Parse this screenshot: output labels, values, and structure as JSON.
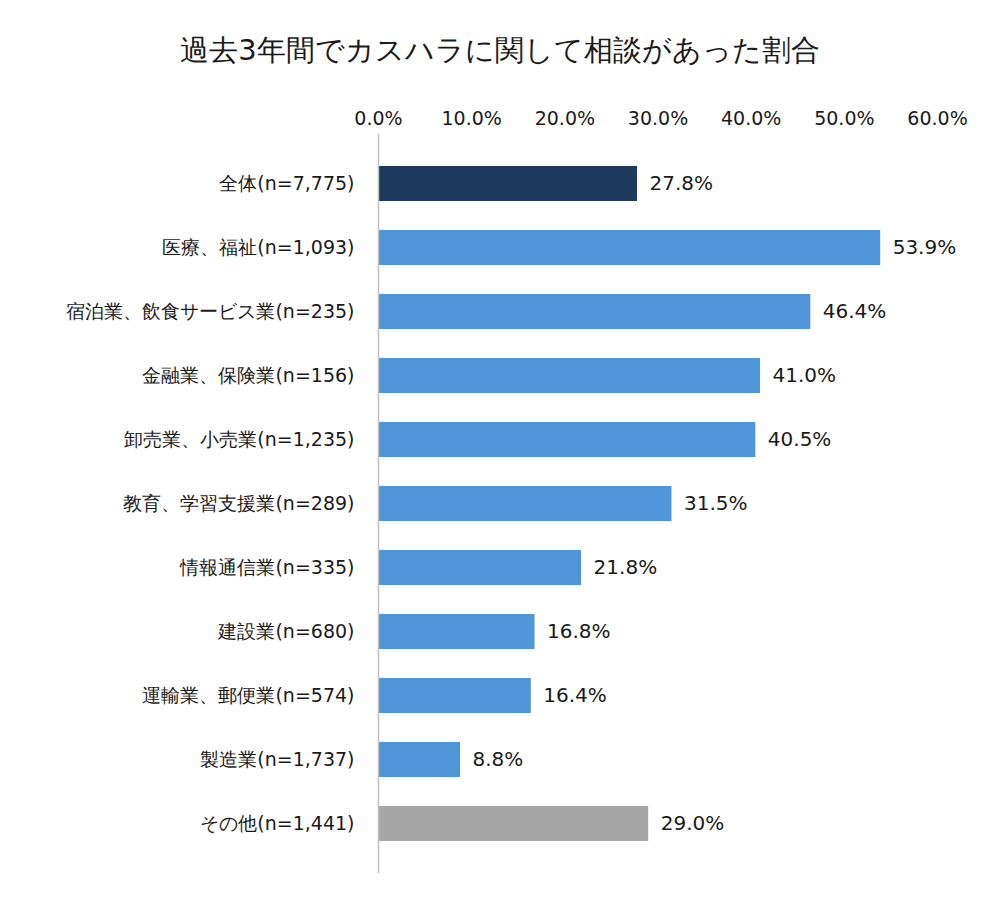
{
  "chart_data": {
    "type": "bar",
    "orientation": "horizontal",
    "title": "過去3年間でカスハラに関して相談があった割合",
    "categories": [
      "全体(n=7,775)",
      "医療、福祉(n=1,093)",
      "宿泊業、飲食サービス業(n=235)",
      "金融業、保険業(n=156)",
      "卸売業、小売業(n=1,235)",
      "教育、学習支援業(n=289)",
      "情報通信業(n=335)",
      "建設業(n=680)",
      "運輸業、郵便業(n=574)",
      "製造業(n=1,737)",
      "その他(n=1,441)"
    ],
    "values": [
      27.8,
      53.9,
      46.4,
      41.0,
      40.5,
      31.5,
      21.8,
      16.8,
      16.4,
      8.8,
      29.0
    ],
    "value_labels": [
      "27.8%",
      "53.9%",
      "46.4%",
      "41.0%",
      "40.5%",
      "31.5%",
      "21.8%",
      "16.8%",
      "16.4%",
      "8.8%",
      "29.0%"
    ],
    "colors": [
      "#1b3a5e",
      "#4f95d9",
      "#4f95d9",
      "#4f95d9",
      "#4f95d9",
      "#4f95d9",
      "#4f95d9",
      "#4f95d9",
      "#4f95d9",
      "#4f95d9",
      "#a6a6a6"
    ],
    "xlim": [
      0,
      60
    ],
    "xticks": [
      {
        "value": 0,
        "label": "0.0%"
      },
      {
        "value": 10,
        "label": "10.0%"
      },
      {
        "value": 20,
        "label": "20.0%"
      },
      {
        "value": 30,
        "label": "30.0%"
      },
      {
        "value": 40,
        "label": "40.0%"
      },
      {
        "value": 50,
        "label": "50.0%"
      },
      {
        "value": 60,
        "label": "60.0%"
      }
    ],
    "grid": false,
    "data_labels": true
  }
}
